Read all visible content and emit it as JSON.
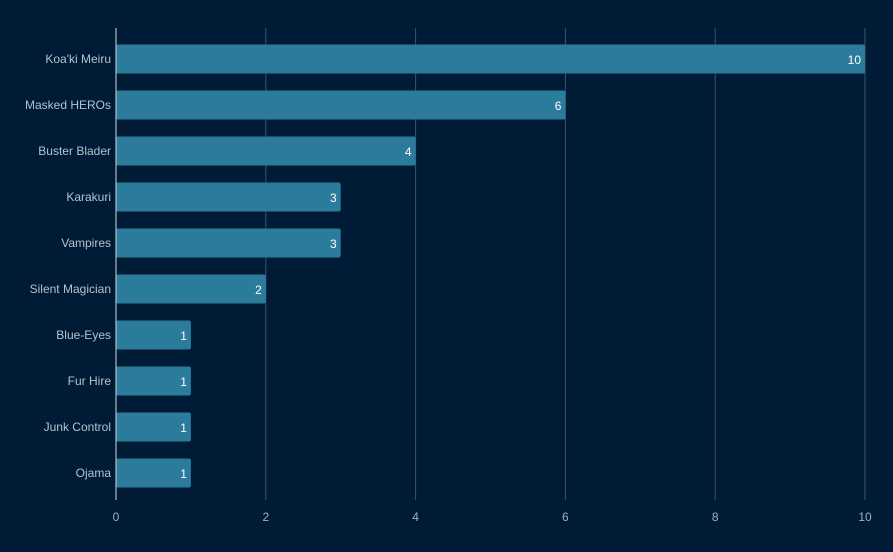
{
  "chart_data": {
    "type": "bar",
    "orientation": "horizontal",
    "title": "",
    "xlabel": "",
    "ylabel": "",
    "categories": [
      "Koa'ki Meiru",
      "Masked HEROs",
      "Buster Blader",
      "Karakuri",
      "Vampires",
      "Silent Magician",
      "Blue-Eyes",
      "Fur Hire",
      "Junk Control",
      "Ojama"
    ],
    "values": [
      10,
      6,
      4,
      3,
      3,
      2,
      1,
      1,
      1,
      1
    ],
    "xlim": [
      0,
      10
    ],
    "x_ticks": [
      "0",
      "2",
      "4",
      "6",
      "8",
      "10"
    ],
    "grid": true,
    "show_data_labels": true,
    "colors": {
      "background": "#001b36",
      "bar": "#2b7b9b",
      "grid": "#3b546d",
      "axis": "#cfd8e0",
      "tick_label": "#9fb0c0",
      "category_label": "#b5c2ce",
      "value_label": "#ffffff"
    }
  }
}
